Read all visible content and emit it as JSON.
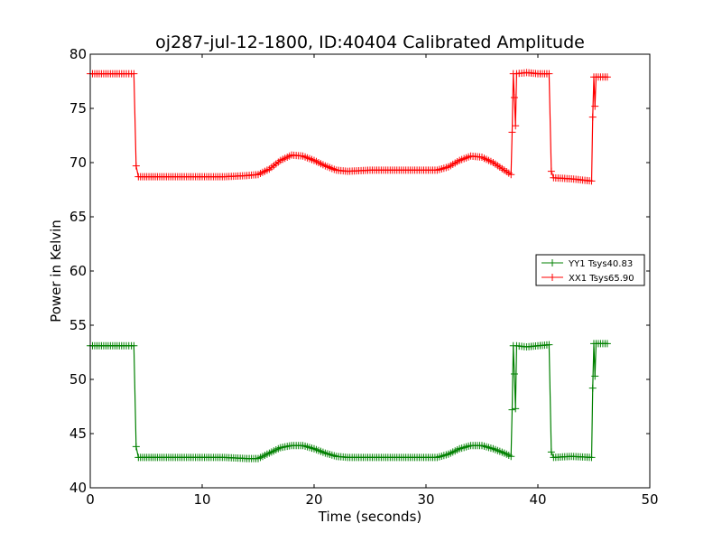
{
  "chart_data": {
    "type": "line",
    "title": "oj287-jul-12-1800, ID:40404 Calibrated Amplitude",
    "xlabel": "Time (seconds)",
    "ylabel": "Power in Kelvin",
    "xlim": [
      0,
      50
    ],
    "ylim": [
      40,
      80
    ],
    "xticks": [
      "0",
      "10",
      "20",
      "30",
      "40",
      "50"
    ],
    "yticks": [
      "40",
      "45",
      "50",
      "55",
      "60",
      "65",
      "70",
      "75",
      "80"
    ],
    "legend_position": "right",
    "marker": "plus",
    "series": [
      {
        "name": "YY1 Tsys40.83",
        "color": "#008000",
        "x": [
          0,
          1,
          2,
          3,
          3.9,
          4.1,
          4.3,
          6,
          8,
          10,
          12,
          14,
          15,
          16,
          17,
          18,
          19,
          20,
          21,
          22,
          23,
          25,
          27,
          29,
          31,
          32,
          33,
          34,
          35,
          36,
          37,
          37.6,
          37.7,
          37.8,
          37.9,
          38.0,
          38.1,
          39,
          40,
          41,
          41.2,
          41.4,
          43,
          44.8,
          44.9,
          45.0,
          45.1,
          45.2,
          45.4,
          46.2
        ],
        "y": [
          53.1,
          53.1,
          53.1,
          53.1,
          53.1,
          43.8,
          42.8,
          42.8,
          42.8,
          42.8,
          42.8,
          42.7,
          42.7,
          43.2,
          43.7,
          43.9,
          43.9,
          43.6,
          43.2,
          42.9,
          42.8,
          42.8,
          42.8,
          42.8,
          42.8,
          43.1,
          43.6,
          43.9,
          43.9,
          43.6,
          43.2,
          42.9,
          47.2,
          53.1,
          50.5,
          47.3,
          53.1,
          53.0,
          53.1,
          53.2,
          43.3,
          42.8,
          42.9,
          42.8,
          49.2,
          53.3,
          50.3,
          53.3,
          53.3,
          53.3
        ]
      },
      {
        "name": "XX1 Tsys65.90",
        "color": "#ff0000",
        "x": [
          0,
          1,
          2,
          3,
          3.9,
          4.1,
          4.3,
          6,
          8,
          10,
          12,
          14,
          15,
          16,
          17,
          18,
          19,
          20,
          21,
          22,
          23,
          25,
          27,
          29,
          31,
          32,
          33,
          34,
          35,
          36,
          37,
          37.6,
          37.7,
          37.8,
          37.9,
          38.0,
          38.1,
          39,
          40,
          41,
          41.2,
          41.4,
          43,
          44.8,
          44.9,
          45.0,
          45.1,
          45.2,
          45.4,
          46.2
        ],
        "y": [
          78.2,
          78.2,
          78.2,
          78.2,
          78.2,
          69.7,
          68.7,
          68.7,
          68.7,
          68.7,
          68.7,
          68.8,
          68.9,
          69.4,
          70.2,
          70.7,
          70.6,
          70.2,
          69.7,
          69.3,
          69.2,
          69.3,
          69.3,
          69.3,
          69.3,
          69.6,
          70.2,
          70.6,
          70.5,
          70.0,
          69.3,
          68.9,
          72.8,
          78.2,
          76.0,
          73.4,
          78.2,
          78.3,
          78.2,
          78.2,
          69.2,
          68.6,
          68.5,
          68.3,
          74.2,
          77.9,
          75.2,
          77.9,
          77.9,
          77.9
        ]
      }
    ]
  }
}
